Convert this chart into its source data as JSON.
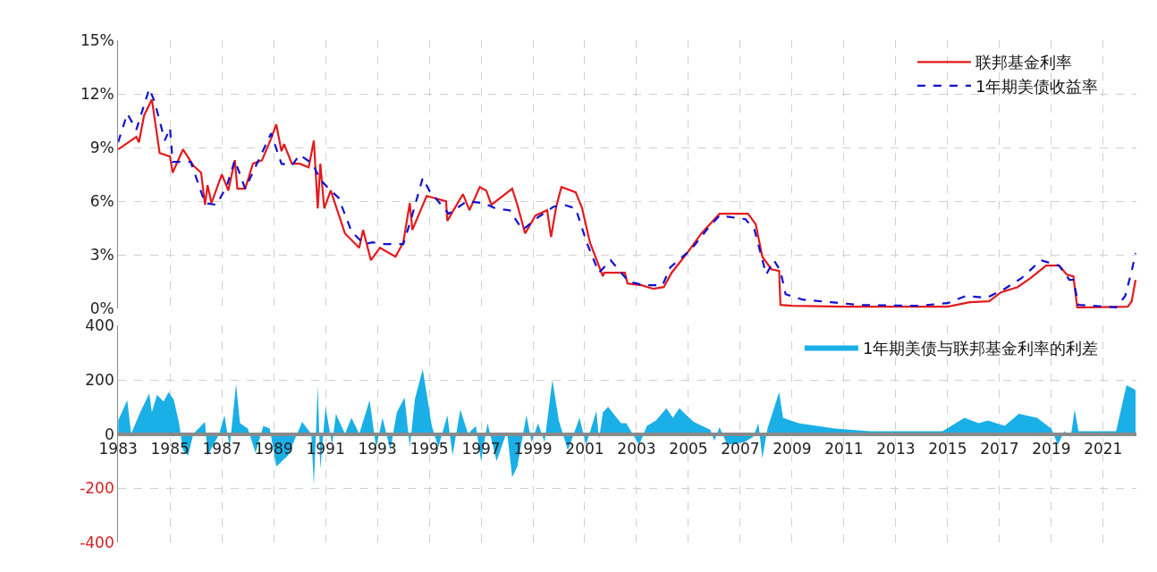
{
  "chart_data": [
    {
      "type": "line",
      "xlim": [
        1983,
        2022.3
      ],
      "xticks": [
        1983,
        1985,
        1987,
        1989,
        1991,
        1993,
        1995,
        1997,
        1999,
        2001,
        2003,
        2005,
        2007,
        2009,
        2011,
        2013,
        2015,
        2017,
        2019,
        2021
      ],
      "ylim": [
        0,
        15
      ],
      "yticks": [
        {
          "value": 0,
          "label": "0%"
        },
        {
          "value": 3,
          "label": "3%"
        },
        {
          "value": 6,
          "label": "6%"
        },
        {
          "value": 9,
          "label": "9%"
        },
        {
          "value": 12,
          "label": "12%"
        },
        {
          "value": 15,
          "label": "15%"
        }
      ],
      "tick_labels": "y",
      "grid": true,
      "legend": "top right",
      "marker": "none",
      "series": [
        {
          "name": "联邦基金利率",
          "color": "#e41a1c",
          "line_style": "solid",
          "x": [
            1983.0,
            1983.7,
            1983.8,
            1984.0,
            1984.3,
            1984.6,
            1985.0,
            1985.1,
            1985.5,
            1985.9,
            1986.2,
            1986.35,
            1986.45,
            1986.6,
            1987.0,
            1987.25,
            1987.5,
            1987.6,
            1987.9,
            1988.2,
            1988.55,
            1988.9,
            1989.1,
            1989.3,
            1989.4,
            1989.7,
            1990.0,
            1990.35,
            1990.55,
            1990.7,
            1990.8,
            1990.95,
            1991.2,
            1991.75,
            1992.3,
            1992.45,
            1992.75,
            1993.1,
            1993.7,
            1994.0,
            1994.25,
            1994.35,
            1994.9,
            1995.65,
            1995.7,
            1996.3,
            1996.55,
            1996.95,
            1997.2,
            1997.4,
            1998.2,
            1998.4,
            1998.7,
            1999.1,
            1999.55,
            1999.7,
            1999.9,
            2000.1,
            2000.65,
            2000.9,
            2001.2,
            2001.7,
            2001.75,
            2002.55,
            2002.65,
            2003.2,
            2003.65,
            2004.05,
            2004.35,
            2004.95,
            2005.5,
            2006.2,
            2007.3,
            2007.6,
            2007.85,
            2008.2,
            2008.5,
            2008.55,
            2009.0,
            2011.0,
            2013.0,
            2015.0,
            2015.85,
            2016.6,
            2017.05,
            2017.7,
            2018.2,
            2018.8,
            2019.3,
            2019.6,
            2019.85,
            2020.0,
            2021.95,
            2022.1,
            2022.25
          ],
          "values": [
            8.9,
            9.6,
            9.3,
            10.8,
            11.7,
            8.7,
            8.5,
            7.6,
            8.9,
            8.0,
            7.6,
            5.8,
            6.9,
            5.9,
            7.5,
            6.6,
            8.3,
            6.7,
            6.7,
            8.1,
            8.3,
            9.5,
            10.3,
            8.8,
            9.2,
            8.1,
            8.1,
            7.9,
            9.4,
            5.6,
            8.1,
            5.6,
            6.6,
            4.2,
            3.4,
            4.4,
            2.7,
            3.4,
            2.9,
            3.7,
            5.9,
            4.4,
            6.3,
            6.0,
            4.9,
            6.4,
            5.5,
            6.8,
            6.6,
            5.8,
            6.7,
            5.8,
            4.2,
            5.2,
            5.5,
            4.0,
            5.7,
            6.8,
            6.5,
            5.6,
            3.7,
            1.8,
            2.0,
            2.0,
            1.4,
            1.3,
            1.1,
            1.2,
            2.0,
            3.1,
            4.2,
            5.3,
            5.3,
            4.7,
            2.9,
            2.2,
            2.1,
            0.2,
            0.15,
            0.1,
            0.1,
            0.1,
            0.35,
            0.4,
            0.9,
            1.2,
            1.7,
            2.4,
            2.4,
            1.9,
            1.8,
            0.05,
            0.1,
            0.4,
            1.6
          ]
        },
        {
          "name": "1年期美债收益率",
          "color": "#1010d0",
          "line_style": "dashed",
          "x": [
            1983.0,
            1983.35,
            1983.7,
            1984.2,
            1984.4,
            1984.8,
            1985.0,
            1985.1,
            1985.8,
            1986.35,
            1986.8,
            1987.2,
            1987.5,
            1987.9,
            1988.9,
            1989.3,
            1989.7,
            1990.0,
            1990.5,
            1990.8,
            1991.2,
            1991.5,
            1991.9,
            1992.0,
            1992.5,
            1992.8,
            1993.3,
            1993.7,
            1994.0,
            1994.3,
            1994.75,
            1995.0,
            1995.75,
            1996.45,
            1997.1,
            1997.55,
            1998.1,
            1998.6,
            1999.2,
            1999.8,
            2000.2,
            2000.65,
            2001.1,
            2001.55,
            2002.0,
            2002.7,
            2003.3,
            2004.0,
            2004.3,
            2005.1,
            2005.7,
            2006.2,
            2007.2,
            2007.55,
            2008.0,
            2008.3,
            2008.55,
            2008.75,
            2009.4,
            2010.5,
            2011.6,
            2013.8,
            2015.0,
            2015.7,
            2016.5,
            2017.2,
            2017.85,
            2018.6,
            2019.3,
            2019.7,
            2019.85,
            2020.05,
            2021.5,
            2021.85,
            2022.1,
            2022.25
          ],
          "values": [
            9.3,
            10.9,
            10.0,
            12.3,
            11.6,
            9.4,
            10.1,
            8.2,
            8.2,
            5.9,
            5.8,
            6.9,
            8.3,
            6.7,
            9.8,
            8.1,
            8.0,
            8.6,
            8.1,
            7.2,
            6.6,
            6.2,
            4.7,
            4.3,
            3.6,
            3.7,
            3.6,
            3.6,
            3.6,
            5.0,
            7.3,
            6.6,
            5.3,
            6.0,
            5.9,
            5.6,
            5.5,
            4.4,
            5.1,
            5.7,
            5.8,
            5.6,
            3.6,
            2.0,
            2.7,
            1.5,
            1.3,
            1.3,
            2.3,
            3.3,
            4.4,
            5.2,
            5.0,
            4.4,
            1.9,
            2.7,
            2.1,
            0.8,
            0.5,
            0.35,
            0.2,
            0.15,
            0.3,
            0.7,
            0.6,
            1.1,
            1.7,
            2.7,
            2.4,
            1.6,
            1.6,
            0.2,
            0.07,
            0.7,
            2.1,
            3.1
          ]
        }
      ]
    },
    {
      "type": "area",
      "xlim": [
        1983,
        2022.3
      ],
      "xticks": [
        1983,
        1985,
        1987,
        1989,
        1991,
        1993,
        1995,
        1997,
        1999,
        2001,
        2003,
        2005,
        2007,
        2009,
        2011,
        2013,
        2015,
        2017,
        2019,
        2021
      ],
      "ylim": [
        -400,
        400
      ],
      "yticks": [
        -400,
        -200,
        0,
        200,
        400
      ],
      "grid": true,
      "legend": "top right",
      "series": [
        {
          "name": "1年期美债与联邦基金利率的利差",
          "color": "#1aafe6",
          "x": [
            1983.0,
            1983.35,
            1983.5,
            1983.85,
            1984.2,
            1984.3,
            1984.5,
            1984.75,
            1984.95,
            1985.15,
            1985.35,
            1985.5,
            1985.7,
            1985.9,
            1986.35,
            1986.45,
            1986.9,
            1987.1,
            1987.3,
            1987.55,
            1987.7,
            1988.0,
            1988.3,
            1988.6,
            1988.85,
            1989.1,
            1989.55,
            1990.1,
            1990.45,
            1990.55,
            1990.7,
            1990.8,
            1991.0,
            1991.25,
            1991.4,
            1991.75,
            1992.0,
            1992.3,
            1992.7,
            1992.95,
            1993.2,
            1993.5,
            1993.75,
            1994.05,
            1994.25,
            1994.45,
            1994.75,
            1995.1,
            1995.35,
            1995.7,
            1995.9,
            1996.2,
            1996.5,
            1996.8,
            1997.0,
            1997.25,
            1997.6,
            1998.0,
            1998.2,
            1998.4,
            1998.75,
            1998.95,
            1999.2,
            1999.45,
            1999.75,
            2000.0,
            2000.35,
            2000.8,
            2001.05,
            2001.45,
            2001.55,
            2001.7,
            2001.9,
            2002.4,
            2002.6,
            2003.1,
            2003.4,
            2003.75,
            2004.15,
            2004.4,
            2004.65,
            2005.2,
            2005.85,
            2006.0,
            2006.2,
            2006.5,
            2007.15,
            2007.5,
            2007.7,
            2007.85,
            2008.05,
            2008.5,
            2008.65,
            2009.25,
            2010.65,
            2012.0,
            2014.8,
            2015.65,
            2016.2,
            2016.55,
            2017.2,
            2017.75,
            2018.45,
            2019.0,
            2019.25,
            2019.5,
            2019.75,
            2019.9,
            2020.05,
            2021.5,
            2021.9,
            2022.2,
            2022.25
          ],
          "values": [
            50,
            125,
            0,
            80,
            150,
            80,
            145,
            120,
            155,
            125,
            40,
            -60,
            -80,
            0,
            45,
            -80,
            0,
            70,
            -50,
            185,
            40,
            20,
            -70,
            30,
            20,
            -120,
            -80,
            45,
            0,
            -190,
            180,
            -130,
            100,
            -40,
            75,
            0,
            60,
            0,
            125,
            -50,
            60,
            -60,
            80,
            135,
            -50,
            130,
            240,
            30,
            -50,
            70,
            -80,
            90,
            0,
            30,
            -100,
            40,
            -100,
            10,
            -160,
            -120,
            70,
            -30,
            40,
            -30,
            200,
            50,
            -60,
            60,
            -40,
            85,
            -20,
            80,
            100,
            40,
            40,
            -40,
            30,
            50,
            95,
            60,
            95,
            45,
            15,
            -25,
            25,
            -40,
            -30,
            -10,
            40,
            -90,
            20,
            155,
            60,
            40,
            20,
            10,
            10,
            60,
            40,
            50,
            30,
            75,
            60,
            20,
            -40,
            10,
            -10,
            90,
            10,
            10,
            180,
            165,
            160
          ]
        }
      ]
    }
  ]
}
